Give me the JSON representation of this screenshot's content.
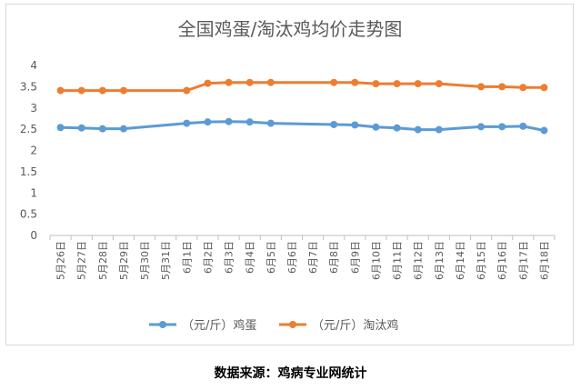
{
  "chart_data": {
    "type": "line",
    "title": "全国鸡蛋/淘汰鸡均价走势图",
    "categories": [
      "5月26日",
      "5月27日",
      "5月28日",
      "5月29日",
      "5月30日",
      "5月31日",
      "6月1日",
      "6月2日",
      "6月3日",
      "6月4日",
      "6月5日",
      "6月6日",
      "6月7日",
      "6月8日",
      "6月9日",
      "6月10日",
      "6月11日",
      "6月12日",
      "6月13日",
      "6月14日",
      "6月15日",
      "6月16日",
      "6月17日",
      "6月18日"
    ],
    "series": [
      {
        "name": "（元/斤）鸡蛋",
        "color": "#5b9bd5",
        "values": [
          2.54,
          2.53,
          2.51,
          2.51,
          null,
          null,
          2.64,
          2.67,
          2.68,
          2.67,
          2.64,
          null,
          null,
          2.61,
          2.6,
          2.55,
          2.53,
          2.49,
          2.49,
          null,
          2.56,
          2.56,
          2.57,
          2.47
        ]
      },
      {
        "name": "（元/斤）淘汰鸡",
        "color": "#ed7d31",
        "values": [
          3.41,
          3.41,
          3.41,
          3.41,
          null,
          null,
          3.41,
          3.58,
          3.6,
          3.6,
          3.6,
          null,
          null,
          3.6,
          3.6,
          3.57,
          3.57,
          3.57,
          3.57,
          null,
          3.5,
          3.5,
          3.48,
          3.48
        ]
      }
    ],
    "yticks": [
      "0",
      "0.5",
      "1",
      "1.5",
      "2",
      "2.5",
      "3",
      "3.5",
      "4"
    ],
    "ylim": [
      0,
      4
    ],
    "grid": false,
    "legend": "bottom"
  },
  "source_note": "数据来源：鸡病专业网统计"
}
